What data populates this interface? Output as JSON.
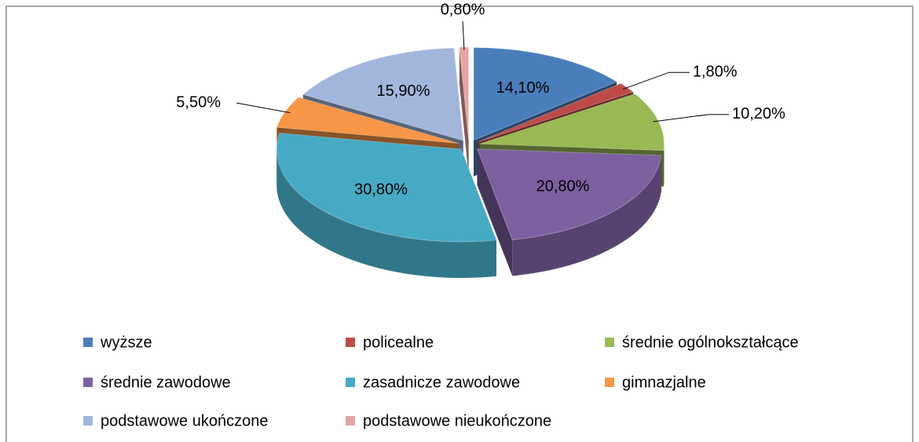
{
  "chart_data": {
    "type": "pie3d",
    "categories": [
      "wyższe",
      "policealne",
      "średnie ogólnokształcące",
      "średnie zawodowe",
      "zasadnicze zawodowe",
      "gimnazjalne",
      "podstawowe ukończone",
      "podstawowe nieukończone"
    ],
    "values": [
      14.1,
      1.8,
      10.2,
      20.8,
      30.8,
      5.5,
      15.9,
      0.8
    ],
    "value_labels": [
      "14,10%",
      "1,80%",
      "10,20%",
      "20,80%",
      "30,80%",
      "5,50%",
      "15,90%",
      "0,80%"
    ],
    "colors": [
      "#4a7ebb",
      "#be4b48",
      "#98b954",
      "#7d60a0",
      "#46aac5",
      "#f79646",
      "#a2b6dc",
      "#e6a5a4"
    ],
    "legend": "bottom"
  }
}
